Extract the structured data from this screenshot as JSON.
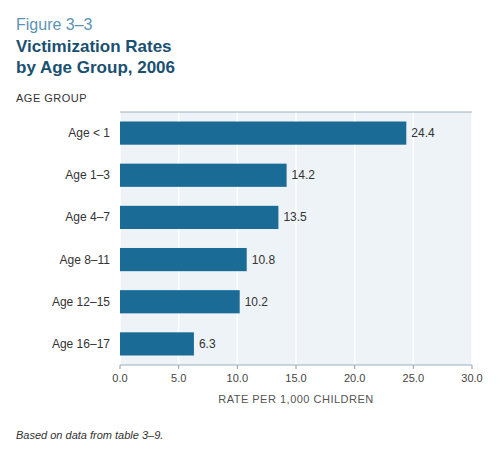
{
  "chart_data": {
    "type": "bar",
    "orientation": "horizontal",
    "title_prefix": "Figure 3–3",
    "title": "Victimization Rates\nby Age Group, 2006",
    "categories": [
      "Age < 1",
      "Age 1–3",
      "Age 4–7",
      "Age 8–11",
      "Age 12–15",
      "Age 16–17"
    ],
    "values": [
      24.4,
      14.2,
      13.5,
      10.8,
      10.2,
      6.3
    ],
    "color": "#1a6b96",
    "xlabel": "RATE PER 1,000 CHILDREN",
    "ylabel": "AGE GROUP",
    "footnote": "Based on data from table 3–9.",
    "xlim": [
      0,
      30
    ],
    "xticks": [
      {
        "value": 0,
        "label": "0.0"
      },
      {
        "value": 5,
        "label": "5.0"
      },
      {
        "value": 10,
        "label": "10.0"
      },
      {
        "value": 15,
        "label": "15.0"
      },
      {
        "value": 20,
        "label": "20.0"
      },
      {
        "value": 25,
        "label": "25.0"
      },
      {
        "value": 30,
        "label": "30.0"
      }
    ],
    "grid": true,
    "data_labels": true
  }
}
